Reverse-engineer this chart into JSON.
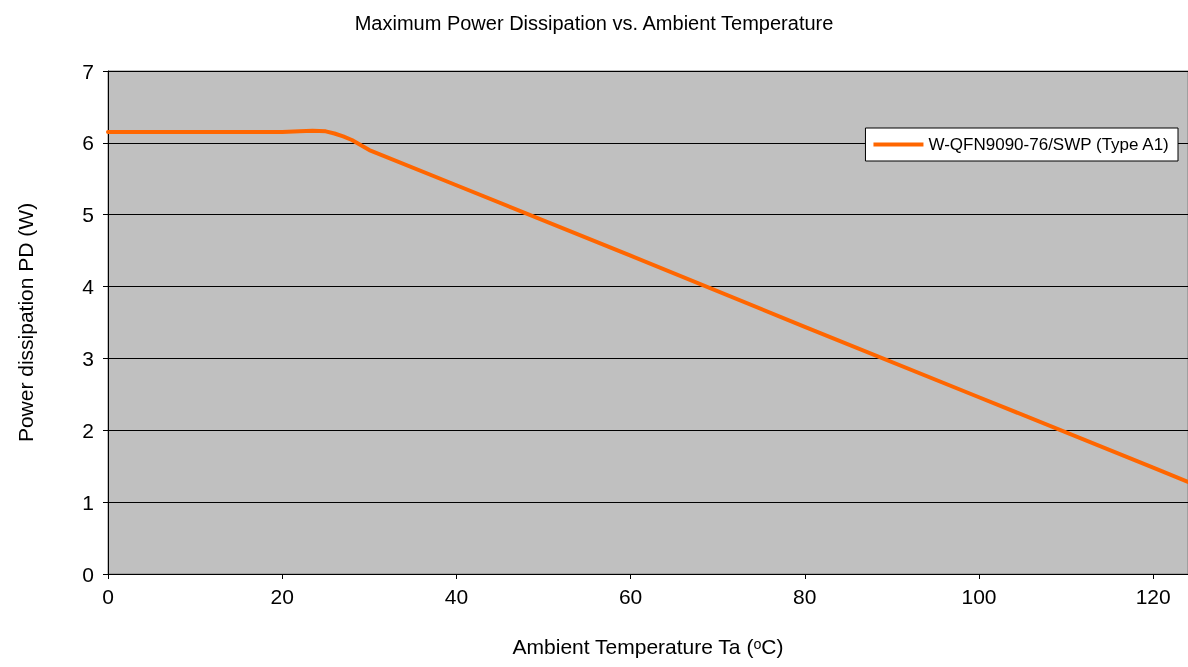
{
  "chart_data": {
    "type": "line",
    "title": "Maximum Power Dissipation vs. Ambient Temperature",
    "xlabel": "Ambient Temperature Ta (ᵒC)",
    "ylabel": "Power dissipation PD (W)",
    "series": [
      {
        "name": "W-QFN9090-76/SWP (Type A1)",
        "color": "#ff6600",
        "x": [
          0,
          20,
          22,
          23.5,
          25,
          26,
          27,
          28,
          30,
          40,
          60,
          80,
          100,
          120,
          124
        ],
        "values": [
          6.15,
          6.15,
          6.16,
          6.17,
          6.16,
          6.13,
          6.09,
          6.04,
          5.9,
          5.41,
          4.43,
          3.44,
          2.46,
          1.48,
          1.28
        ]
      }
    ],
    "xlim": [
      0,
      124
    ],
    "xticks": [
      0,
      20,
      40,
      60,
      80,
      100,
      120
    ],
    "ylim": [
      0,
      7
    ],
    "yticks": [
      0,
      1,
      2,
      3,
      4,
      5,
      6,
      7
    ],
    "grid": "y",
    "legend": "top right",
    "marker": "none",
    "line_style": "solid"
  }
}
